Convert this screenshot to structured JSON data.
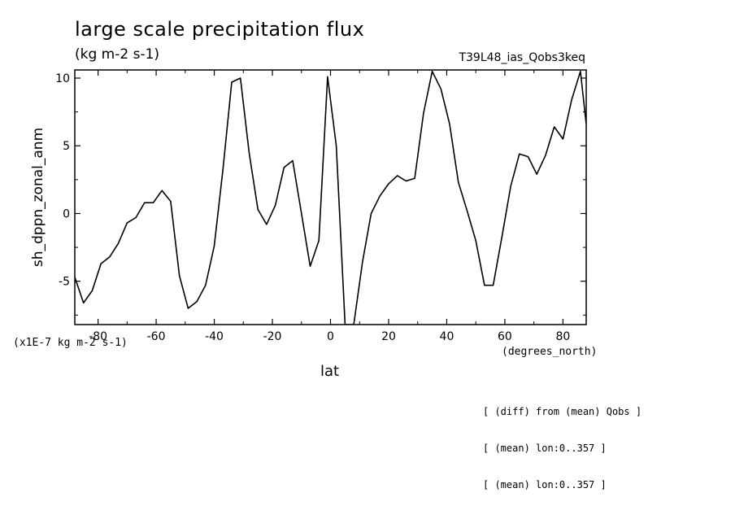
{
  "header": {
    "title": "large scale precipitation flux",
    "units": "(kg m-2 s-1)",
    "run_id": "T39L48_ias_Qobs3keq"
  },
  "footer": {
    "scale_note": "(x1E-7 kg m-2 s-1)",
    "x_units": "(degrees_north)",
    "notes": [
      "[ (diff) from (mean) Qobs ]",
      "[ (mean) lon:0..357 ]",
      "[ (mean) lon:0..357 ]"
    ]
  },
  "chart_data": {
    "type": "line",
    "title": "large scale precipitation flux",
    "subtitle": "(kg m-2 s-1)",
    "xlabel": "lat",
    "ylabel": "sh_dppn_zonal_anm",
    "xlim": [
      -88,
      88
    ],
    "ylim": [
      -8.2,
      10.6
    ],
    "x_ticks": [
      -80,
      -60,
      -40,
      -20,
      0,
      20,
      40,
      60,
      80
    ],
    "y_ticks": [
      -5,
      0,
      5,
      10
    ],
    "grid": false,
    "series": [
      {
        "x": [
          -88,
          -85,
          -82,
          -79,
          -76,
          -73,
          -70,
          -67,
          -64,
          -61,
          -58,
          -55,
          -52,
          -49,
          -46,
          -43,
          -40,
          -37,
          -34,
          -31,
          -28,
          -25,
          -22,
          -19,
          -16,
          -13,
          -10,
          -7,
          -4,
          -1,
          2,
          5,
          8,
          11,
          14,
          17,
          20,
          23,
          26,
          29,
          32,
          35,
          38,
          41,
          44,
          47,
          50,
          53,
          56,
          59,
          62,
          65,
          68,
          71,
          74,
          77,
          80,
          83,
          86,
          88
        ],
        "y": [
          -4.7,
          -6.6,
          -5.7,
          -3.7,
          -3.2,
          -2.2,
          -0.7,
          -0.3,
          0.8,
          0.8,
          1.7,
          0.9,
          -4.6,
          -7.0,
          -6.5,
          -5.3,
          -2.4,
          3.3,
          9.7,
          10.0,
          4.5,
          0.3,
          -0.8,
          0.6,
          3.4,
          3.9,
          0.0,
          -3.9,
          -2.0,
          10.1,
          5.0,
          -8.2,
          -8.2,
          -3.6,
          0.0,
          1.3,
          2.2,
          2.8,
          2.4,
          2.6,
          7.4,
          10.5,
          9.2,
          6.6,
          2.3,
          0.2,
          -2.0,
          -5.3,
          -5.3,
          -1.7,
          2.0,
          4.4,
          4.2,
          2.9,
          4.3,
          6.4,
          5.5,
          8.4,
          10.5,
          6.6
        ]
      }
    ]
  }
}
